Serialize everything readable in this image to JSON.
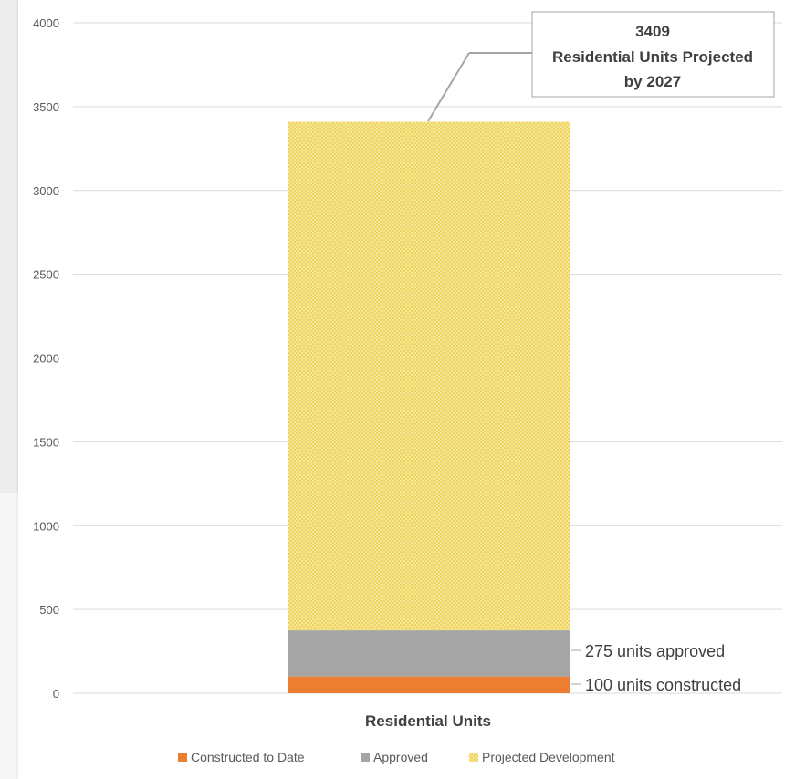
{
  "chart_data": {
    "type": "bar",
    "stacked": true,
    "categories": [
      "Residential Units"
    ],
    "series": [
      {
        "name": "Constructed to Date",
        "values": [
          100
        ],
        "color": "#ed7d31",
        "pattern": "solid"
      },
      {
        "name": "Approved",
        "values": [
          275
        ],
        "color": "#a5a5a5",
        "pattern": "solid"
      },
      {
        "name": "Projected Development",
        "values": [
          3034
        ],
        "color": "#f2dc6b",
        "pattern": "dotted"
      }
    ],
    "total": 3409,
    "title": "",
    "xlabel": "Residential Units",
    "ylabel": "",
    "ylim": [
      0,
      4000
    ],
    "yticks": [
      "0",
      "500",
      "1000",
      "1500",
      "2000",
      "2500",
      "3000",
      "3500",
      "4000"
    ],
    "grid": true,
    "legend_position": "bottom",
    "data_labels": {
      "approved": "275 units approved",
      "constructed": "100 units constructed"
    },
    "callout": {
      "value": "3409",
      "line1": "Residential Units Projected",
      "line2": "by 2027"
    }
  }
}
